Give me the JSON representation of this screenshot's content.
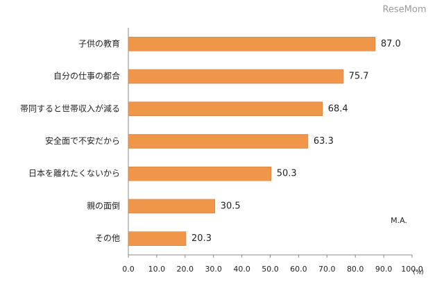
{
  "chart_data": {
    "type": "bar",
    "orientation": "horizontal",
    "categories": [
      "子供の教育",
      "自分の仕事の都合",
      "帯同すると世帯収入が減る",
      "安全面で不安だから",
      "日本を離れたくないから",
      "親の面倒",
      "その他"
    ],
    "values": [
      87.0,
      75.7,
      68.4,
      63.3,
      50.3,
      30.5,
      20.3
    ],
    "value_labels": [
      "87.0",
      "75.7",
      "68.4",
      "63.3",
      "50.3",
      "30.5",
      "20.3"
    ],
    "color": "#f0964b",
    "xlim": [
      0,
      100
    ],
    "xticks": [
      {
        "value": 0,
        "label": "0.0"
      },
      {
        "value": 10,
        "label": "10.0"
      },
      {
        "value": 20,
        "label": "20.0"
      },
      {
        "value": 30,
        "label": "30.0"
      },
      {
        "value": 40,
        "label": "40.0"
      },
      {
        "value": 50,
        "label": "50.0"
      },
      {
        "value": 60,
        "label": "60.0"
      },
      {
        "value": 70,
        "label": "70.0"
      },
      {
        "value": 80,
        "label": "80.0"
      },
      {
        "value": 90,
        "label": "90.0"
      },
      {
        "value": 100,
        "label": "100.0"
      }
    ],
    "unit_label": "(%)",
    "note": "M.A.",
    "watermark": "ReseMom"
  }
}
